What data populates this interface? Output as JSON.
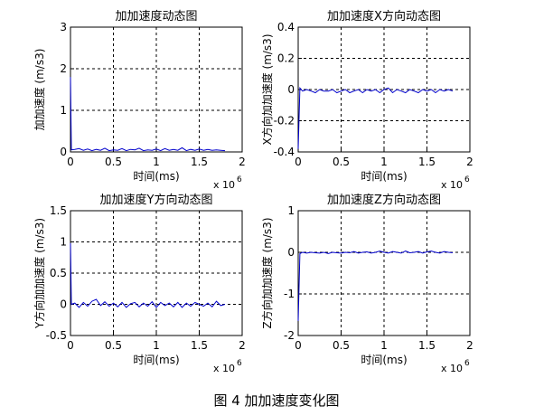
{
  "figure_caption": "图 4  加加速度变化图",
  "chart_data": [
    {
      "type": "line",
      "title": "加加速度动态图",
      "xlabel": "时间(ms)",
      "ylabel": "加加速度 (m/s3)",
      "x_exponent": "x 10",
      "x_exponent_power": "6",
      "xlim": [
        0,
        2
      ],
      "ylim": [
        0,
        3
      ],
      "xticks": [
        "0",
        "0.5",
        "1",
        "1.5",
        "2"
      ],
      "yticks": [
        "0",
        "1",
        "2",
        "3"
      ],
      "grid": true,
      "series": [
        {
          "color": "#0000cc",
          "x": [
            0,
            0.01,
            0.05,
            0.1,
            0.15,
            0.2,
            0.25,
            0.3,
            0.35,
            0.4,
            0.45,
            0.5,
            0.55,
            0.6,
            0.65,
            0.7,
            0.75,
            0.8,
            0.85,
            0.9,
            0.95,
            1.0,
            1.05,
            1.1,
            1.15,
            1.2,
            1.25,
            1.3,
            1.35,
            1.4,
            1.45,
            1.5,
            1.55,
            1.6,
            1.65,
            1.7,
            1.75,
            1.8
          ],
          "y": [
            1.8,
            0.05,
            0.06,
            0.08,
            0.04,
            0.07,
            0.03,
            0.06,
            0.04,
            0.09,
            0.03,
            0.05,
            0.04,
            0.08,
            0.03,
            0.06,
            0.05,
            0.09,
            0.03,
            0.05,
            0.04,
            0.07,
            0.03,
            0.08,
            0.04,
            0.06,
            0.04,
            0.1,
            0.03,
            0.06,
            0.04,
            0.07,
            0.04,
            0.06,
            0.04,
            0.05,
            0.04,
            0.03
          ]
        }
      ]
    },
    {
      "type": "line",
      "title": "加加速度X方向动态图",
      "xlabel": "时间(ms)",
      "ylabel": "X方向加加速度 (m/s3)",
      "x_exponent": "x 10",
      "x_exponent_power": "6",
      "xlim": [
        0,
        2
      ],
      "ylim": [
        -0.4,
        0.4
      ],
      "xticks": [
        "0",
        "0.5",
        "1",
        "1.5",
        "2"
      ],
      "yticks": [
        "-0.4",
        "-0.2",
        "0",
        "0.2",
        "0.4"
      ],
      "grid": true,
      "series": [
        {
          "color": "#0000cc",
          "x": [
            0,
            0.02,
            0.05,
            0.1,
            0.15,
            0.2,
            0.25,
            0.3,
            0.35,
            0.4,
            0.45,
            0.5,
            0.55,
            0.6,
            0.65,
            0.7,
            0.75,
            0.8,
            0.85,
            0.9,
            0.95,
            1.0,
            1.05,
            1.1,
            1.15,
            1.2,
            1.25,
            1.3,
            1.35,
            1.4,
            1.45,
            1.5,
            1.55,
            1.6,
            1.65,
            1.7,
            1.75,
            1.8
          ],
          "y": [
            -0.38,
            0.01,
            -0.01,
            0.0,
            -0.01,
            -0.02,
            0.0,
            -0.01,
            -0.01,
            0.0,
            -0.02,
            -0.01,
            0.0,
            -0.02,
            -0.01,
            0.0,
            -0.02,
            0.0,
            -0.01,
            0.0,
            -0.02,
            0.0,
            0.01,
            -0.02,
            0.0,
            -0.01,
            -0.02,
            0.0,
            -0.01,
            -0.02,
            0.0,
            -0.01,
            0.0,
            -0.02,
            0.0,
            -0.01,
            0.0,
            -0.01
          ]
        }
      ]
    },
    {
      "type": "line",
      "title": "加加速度Y方向动态图",
      "xlabel": "时间(ms)",
      "ylabel": "Y方向加加速度 (m/s3)",
      "x_exponent": "x 10",
      "x_exponent_power": "6",
      "xlim": [
        0,
        2
      ],
      "ylim": [
        -0.5,
        1.5
      ],
      "xticks": [
        "0",
        "0.5",
        "1",
        "1.5",
        "2"
      ],
      "yticks": [
        "-0.5",
        "0",
        "0.5",
        "1",
        "1.5"
      ],
      "grid": true,
      "series": [
        {
          "color": "#0000cc",
          "x": [
            0,
            0.01,
            0.05,
            0.1,
            0.15,
            0.2,
            0.25,
            0.3,
            0.35,
            0.4,
            0.45,
            0.5,
            0.55,
            0.6,
            0.65,
            0.7,
            0.75,
            0.8,
            0.85,
            0.9,
            0.95,
            1.0,
            1.05,
            1.1,
            1.15,
            1.2,
            1.25,
            1.3,
            1.35,
            1.4,
            1.45,
            1.5,
            1.55,
            1.6,
            1.65,
            1.7,
            1.75,
            1.8
          ],
          "y": [
            0.98,
            0.0,
            0.02,
            -0.05,
            0.03,
            -0.03,
            0.05,
            0.08,
            -0.02,
            0.04,
            -0.03,
            0.02,
            -0.04,
            0.03,
            -0.05,
            0.01,
            0.03,
            -0.04,
            0.02,
            -0.03,
            0.04,
            -0.05,
            0.03,
            -0.02,
            0.02,
            -0.04,
            0.03,
            -0.05,
            0.02,
            -0.03,
            0.03,
            0.0,
            -0.03,
            0.02,
            -0.04,
            0.05,
            -0.02,
            0.0
          ]
        }
      ]
    },
    {
      "type": "line",
      "title": "加加速度Z方向动态图",
      "xlabel": "时间(ms)",
      "ylabel": "Z方向加加速度 (m/s3)",
      "x_exponent": "x 10",
      "x_exponent_power": "6",
      "xlim": [
        0,
        2
      ],
      "ylim": [
        -2,
        1
      ],
      "xticks": [
        "0",
        "0.5",
        "1",
        "1.5",
        "2"
      ],
      "yticks": [
        "-2",
        "-1",
        "0",
        "1"
      ],
      "grid": true,
      "series": [
        {
          "color": "#0000cc",
          "x": [
            0,
            0.02,
            0.05,
            0.1,
            0.15,
            0.2,
            0.25,
            0.3,
            0.35,
            0.4,
            0.45,
            0.5,
            0.55,
            0.6,
            0.65,
            0.7,
            0.75,
            0.8,
            0.85,
            0.9,
            0.95,
            1.0,
            1.05,
            1.1,
            1.15,
            1.2,
            1.25,
            1.3,
            1.35,
            1.4,
            1.45,
            1.5,
            1.55,
            1.6,
            1.65,
            1.7,
            1.75,
            1.8
          ],
          "y": [
            -1.65,
            -0.03,
            0.0,
            -0.02,
            0.0,
            -0.01,
            -0.02,
            0.0,
            -0.03,
            0.0,
            -0.01,
            -0.02,
            0.0,
            -0.01,
            0.02,
            -0.02,
            0.0,
            0.01,
            -0.02,
            0.0,
            0.03,
            0.0,
            -0.02,
            0.02,
            0.0,
            -0.02,
            0.03,
            -0.01,
            0.0,
            0.02,
            -0.02,
            0.01,
            0.03,
            0.0,
            -0.02,
            0.02,
            0.0,
            -0.01
          ]
        }
      ]
    }
  ]
}
